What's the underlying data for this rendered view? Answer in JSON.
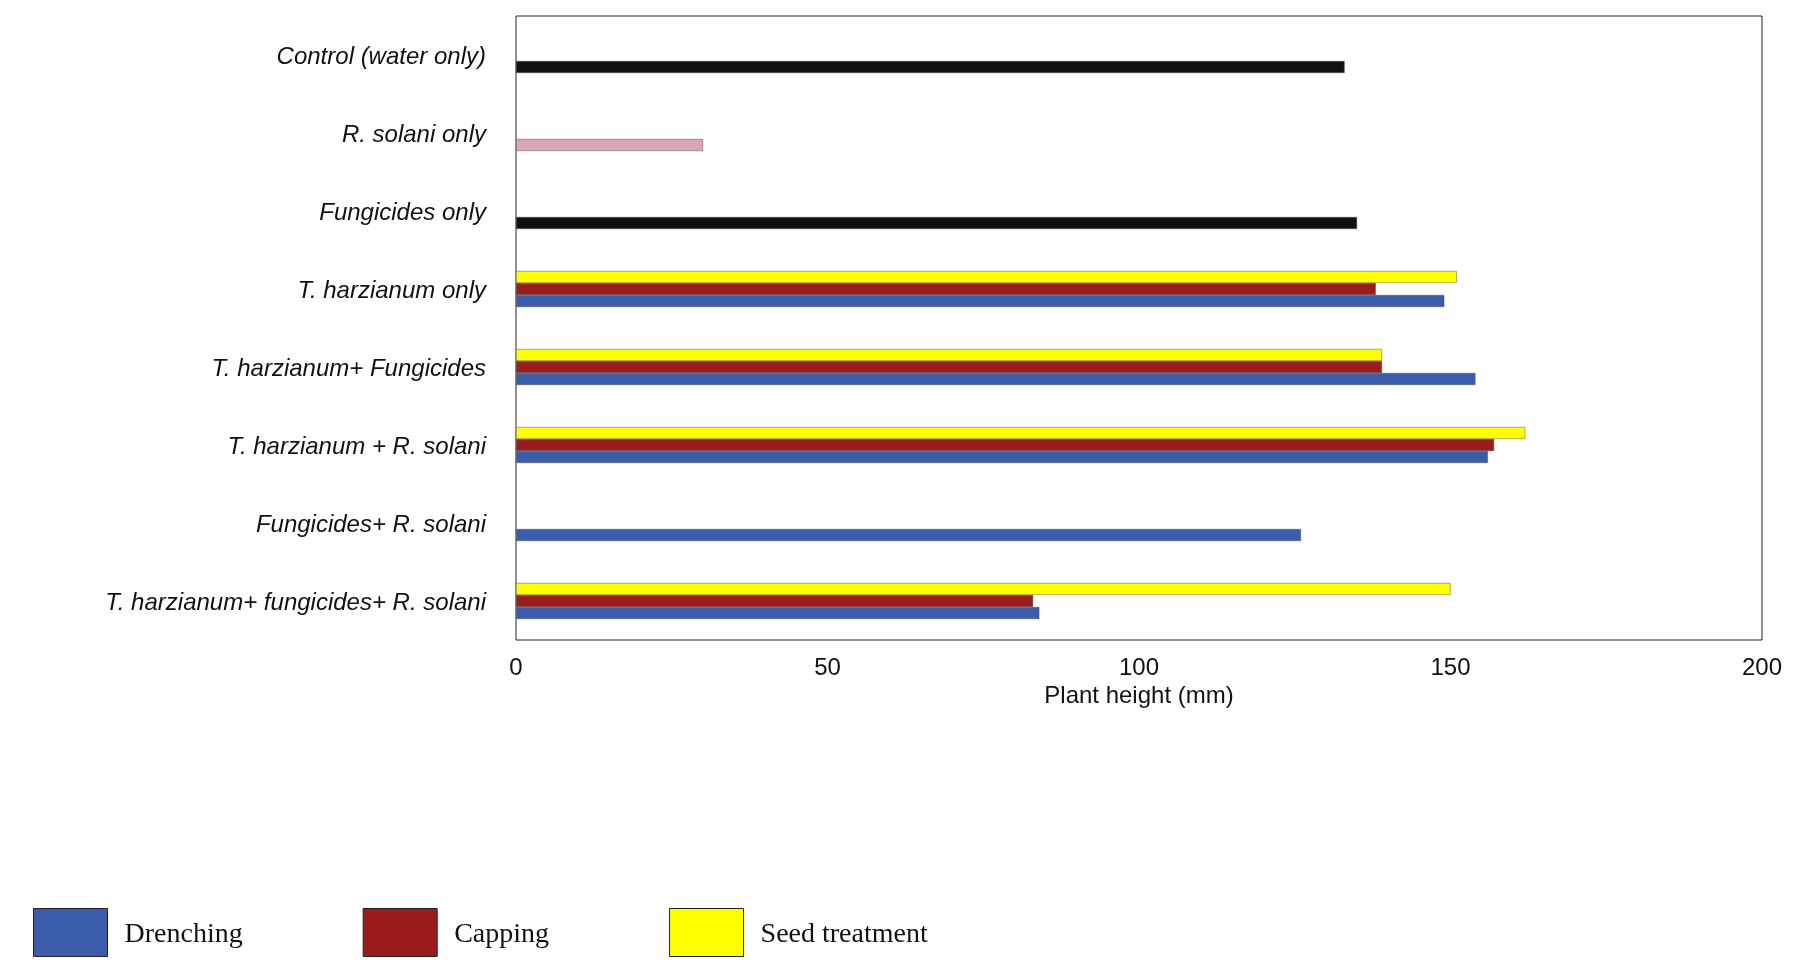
{
  "chart_data": {
    "type": "bar",
    "orientation": "horizontal",
    "xlabel": "Plant height (mm)",
    "categories": [
      "Control (water only)",
      "R. solani only",
      "Fungicides only",
      "T. harzianum only",
      "T. harzianum+ Fungicides",
      "T. harzianum + R. solani",
      "Fungicides+ R. solani",
      "T. harzianum+ fungicides+ R. solani"
    ],
    "series": [
      {
        "name": "Drenching",
        "color": "#3b5bab",
        "colors": [
          "#111111",
          "#d9a5b8",
          "#111111",
          "#3b5bab",
          "#3b5bab",
          "#3b5bab",
          "#3b5bab",
          "#3b5bab"
        ],
        "values": [
          133,
          30,
          135,
          149,
          154,
          156,
          126,
          84
        ]
      },
      {
        "name": "Capping",
        "color": "#9b1c1c",
        "values": [
          null,
          null,
          null,
          138,
          139,
          157,
          null,
          83
        ]
      },
      {
        "name": "Seed treatment",
        "color": "#ffff00",
        "values": [
          null,
          null,
          null,
          151,
          139,
          162,
          null,
          150
        ]
      }
    ],
    "xlim": [
      0,
      200
    ],
    "xticks": [
      0,
      50,
      100,
      150,
      200
    ],
    "grid": false,
    "legend": "bottom"
  }
}
